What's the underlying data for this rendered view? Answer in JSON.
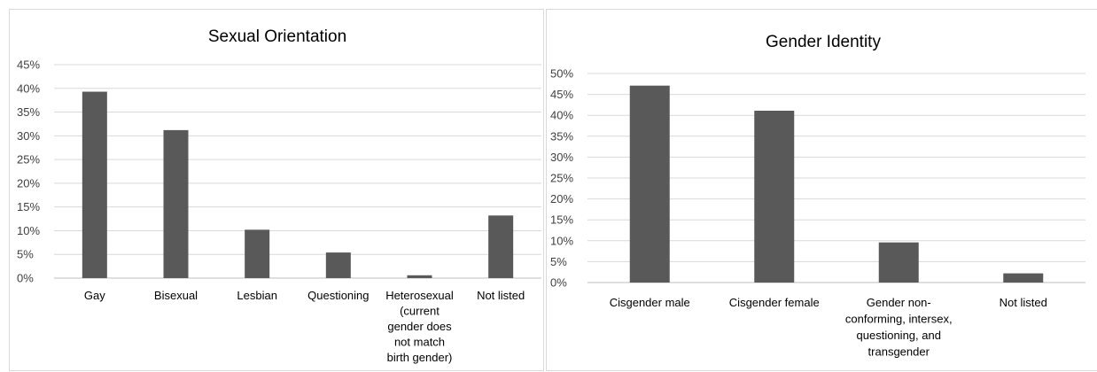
{
  "chart_data": [
    {
      "type": "bar",
      "title": "Sexual Orientation",
      "xlabel": "",
      "ylabel": "",
      "ylim": [
        0,
        45
      ],
      "yticks": [
        "0%",
        "5%",
        "10%",
        "15%",
        "20%",
        "25%",
        "30%",
        "35%",
        "40%",
        "45%"
      ],
      "categories": [
        [
          "Gay"
        ],
        [
          "Bisexual"
        ],
        [
          "Lesbian"
        ],
        [
          "Questioning"
        ],
        [
          "Heterosexual",
          "(current",
          "gender does",
          "not match",
          "birth gender)"
        ],
        [
          "Not listed"
        ]
      ],
      "values": [
        39.3,
        31.2,
        10.2,
        5.4,
        0.6,
        13.2
      ],
      "bar_color": "#595959",
      "grid": true,
      "legend": "none"
    },
    {
      "type": "bar",
      "title": "Gender Identity",
      "xlabel": "",
      "ylabel": "",
      "ylim": [
        0,
        50
      ],
      "yticks": [
        "0%",
        "5%",
        "10%",
        "15%",
        "20%",
        "25%",
        "30%",
        "35%",
        "40%",
        "45%",
        "50%"
      ],
      "categories": [
        [
          "Cisgender male"
        ],
        [
          "Cisgender female"
        ],
        [
          "Gender non-",
          "conforming, intersex,",
          "questioning, and",
          "transgender"
        ],
        [
          "Not listed"
        ]
      ],
      "values": [
        47.1,
        41.1,
        9.6,
        2.2
      ],
      "bar_color": "#595959",
      "grid": true,
      "legend": "none"
    }
  ]
}
